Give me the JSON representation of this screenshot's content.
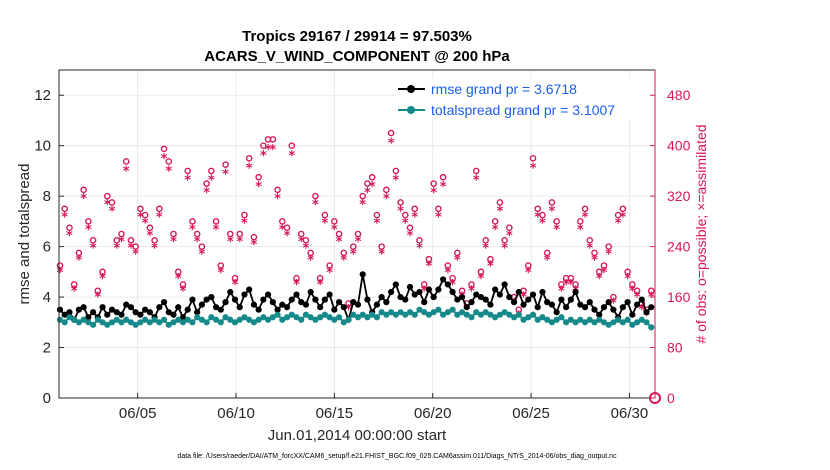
{
  "chart_data": {
    "type": "line",
    "title": "Tropics 29167 / 29914 = 97.503%",
    "subtitle": "ACARS_V_WIND_COMPONENT @ 200 hPa",
    "xlabel": "Jun.01,2014 00:00:00 start",
    "ylabel": "rmse and totalspread",
    "ylabel_right": "# of obs: o=possible; ×=assimilated",
    "xlim": [
      1,
      31.3
    ],
    "ylim": [
      0,
      13
    ],
    "ylim_right": [
      0,
      520
    ],
    "x_ticks": [
      5,
      10,
      15,
      20,
      25,
      30
    ],
    "x_tick_labels": [
      "06/05",
      "06/10",
      "06/15",
      "06/20",
      "06/25",
      "06/30"
    ],
    "y_ticks": [
      0,
      2,
      4,
      6,
      8,
      10,
      12
    ],
    "y_tick_labels": [
      "0",
      "2",
      "4",
      "6",
      "8",
      "10",
      "12"
    ],
    "y_right_ticks": [
      0,
      80,
      160,
      240,
      320,
      400,
      480
    ],
    "y_right_tick_labels": [
      "0",
      "80",
      "160",
      "240",
      "320",
      "400",
      "480"
    ],
    "legend_position": "top-right",
    "series": [
      {
        "name": "rmse grand pr = 3.6718",
        "color": "#000000",
        "marker": "dot",
        "values": [
          3.5,
          3.3,
          3.4,
          3.1,
          3.5,
          3.6,
          3.2,
          3.4,
          3.2,
          3.6,
          3.3,
          3.5,
          3.4,
          3.3,
          3.7,
          3.6,
          3.4,
          3.3,
          3.5,
          3.4,
          3.2,
          3.6,
          3.8,
          3.4,
          3.3,
          3.6,
          3.2,
          3.5,
          3.9,
          3.4,
          3.7,
          3.9,
          4.0,
          3.6,
          3.5,
          3.8,
          4.2,
          3.9,
          3.6,
          4.1,
          4.3,
          3.7,
          3.5,
          3.9,
          4.1,
          3.8,
          3.5,
          3.7,
          3.6,
          3.9,
          4.1,
          3.8,
          3.7,
          4.2,
          3.9,
          3.6,
          3.9,
          4.1,
          3.5,
          3.8,
          3.6,
          3.1,
          3.8,
          3.7,
          4.9,
          3.9,
          3.4,
          3.7,
          4.0,
          3.8,
          4.2,
          4.5,
          4.0,
          3.9,
          4.4,
          4.1,
          4.2,
          3.8,
          4.3,
          4.0,
          4.3,
          4.7,
          4.5,
          4.2,
          3.9,
          4.0,
          3.6,
          3.8,
          4.1,
          4.0,
          3.9,
          3.7,
          4.3,
          4.1,
          4.5,
          4.0,
          3.8,
          4.2,
          3.7,
          3.9,
          4.1,
          3.6,
          4.2,
          3.8,
          3.7,
          3.4,
          3.9,
          3.6,
          3.9,
          4.2,
          3.7,
          3.6,
          3.8,
          3.5,
          3.3,
          3.6,
          3.8,
          3.5,
          3.2,
          3.6,
          3.8,
          3.3,
          3.7,
          3.9,
          3.4,
          3.6
        ]
      },
      {
        "name": "totalspread grand pr = 3.1007",
        "color": "#168a8a",
        "marker": "dot",
        "values": [
          3.1,
          3.0,
          3.2,
          3.1,
          3.0,
          3.1,
          3.0,
          2.9,
          3.1,
          3.0,
          2.9,
          3.0,
          3.1,
          3.0,
          3.1,
          3.0,
          2.9,
          3.0,
          3.1,
          3.0,
          3.1,
          3.0,
          3.1,
          2.9,
          3.0,
          3.1,
          3.0,
          3.1,
          3.0,
          3.2,
          3.1,
          3.0,
          3.2,
          3.1,
          3.0,
          3.2,
          3.1,
          3.0,
          3.1,
          3.2,
          3.1,
          3.0,
          3.1,
          3.2,
          3.1,
          3.2,
          3.3,
          3.1,
          3.2,
          3.3,
          3.2,
          3.1,
          3.3,
          3.2,
          3.1,
          3.2,
          3.3,
          3.2,
          3.1,
          3.2,
          3.0,
          3.1,
          3.3,
          3.2,
          3.3,
          3.2,
          3.3,
          3.2,
          3.4,
          3.3,
          3.4,
          3.3,
          3.4,
          3.3,
          3.4,
          3.3,
          3.5,
          3.4,
          3.3,
          3.4,
          3.5,
          3.3,
          3.4,
          3.5,
          3.3,
          3.4,
          3.3,
          3.2,
          3.4,
          3.3,
          3.4,
          3.3,
          3.2,
          3.3,
          3.4,
          3.3,
          3.2,
          3.3,
          3.1,
          3.2,
          3.3,
          3.1,
          3.2,
          3.1,
          3.0,
          3.1,
          3.2,
          3.0,
          3.1,
          3.0,
          3.1,
          3.0,
          3.1,
          3.0,
          3.1,
          3.0,
          2.9,
          3.0,
          3.1,
          3.0,
          3.1,
          2.9,
          3.0,
          3.1,
          3.0,
          2.8
        ]
      }
    ],
    "obs_series": {
      "color": "#d6175b",
      "possible": [
        210,
        300,
        270,
        180,
        230,
        330,
        280,
        250,
        170,
        200,
        320,
        310,
        250,
        260,
        375,
        250,
        240,
        300,
        290,
        270,
        250,
        300,
        395,
        375,
        260,
        200,
        180,
        360,
        280,
        260,
        240,
        340,
        360,
        280,
        210,
        370,
        260,
        190,
        260,
        290,
        380,
        255,
        350,
        400,
        410,
        410,
        330,
        280,
        270,
        400,
        190,
        260,
        250,
        230,
        320,
        190,
        290,
        210,
        280,
        260,
        230,
        150,
        240,
        260,
        320,
        340,
        350,
        290,
        240,
        330,
        420,
        360,
        310,
        290,
        270,
        300,
        250,
        180,
        220,
        340,
        300,
        350,
        210,
        190,
        230,
        170,
        150,
        180,
        360,
        200,
        250,
        220,
        280,
        310,
        250,
        270,
        160,
        140,
        170,
        210,
        380,
        300,
        290,
        230,
        310,
        280,
        180,
        190,
        190,
        180,
        280,
        300,
        250,
        230,
        200,
        210,
        240,
        160,
        290,
        300,
        200,
        180,
        170,
        150,
        140,
        170
      ]
    }
  },
  "footer": "data file: /Users/raeder/DAI/ATM_forcXX/CAM6_setup/f.e21.FHIST_BGC.f09_025.CAM6assim.011/Diags_NTrS_2014-06/obs_diag_output.nc"
}
